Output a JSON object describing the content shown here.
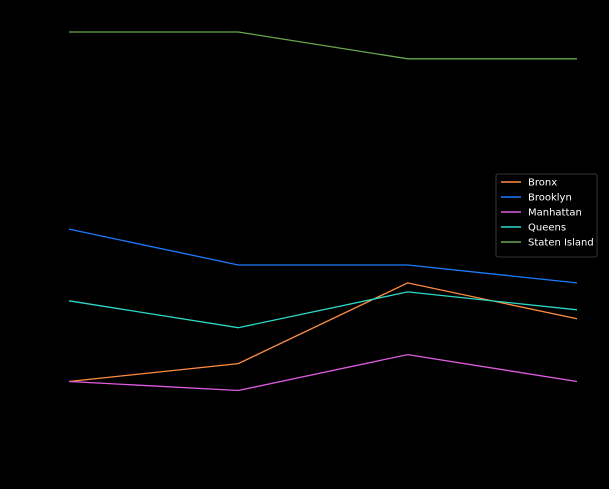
{
  "chart_data": {
    "type": "line",
    "x": [
      0,
      1,
      2,
      3
    ],
    "ylim": [
      0.8,
      22.0
    ],
    "grid": false,
    "legend_position": "center-right",
    "background_color": "#000000",
    "series": [
      {
        "name": "Bronx",
        "color": "#ff8c42",
        "values": [
          2.0,
          3.0,
          7.5,
          5.5
        ]
      },
      {
        "name": "Brooklyn",
        "color": "#1e7bff",
        "values": [
          10.5,
          8.5,
          8.5,
          7.5
        ]
      },
      {
        "name": "Manhattan",
        "color": "#e05ce0",
        "values": [
          2.0,
          1.5,
          3.5,
          2.0
        ]
      },
      {
        "name": "Queens",
        "color": "#2ed8c8",
        "values": [
          6.5,
          5.0,
          7.0,
          6.0
        ]
      },
      {
        "name": "Staten Island",
        "color": "#6aa84f",
        "values": [
          21.5,
          21.5,
          20.0,
          20.0
        ]
      }
    ]
  }
}
